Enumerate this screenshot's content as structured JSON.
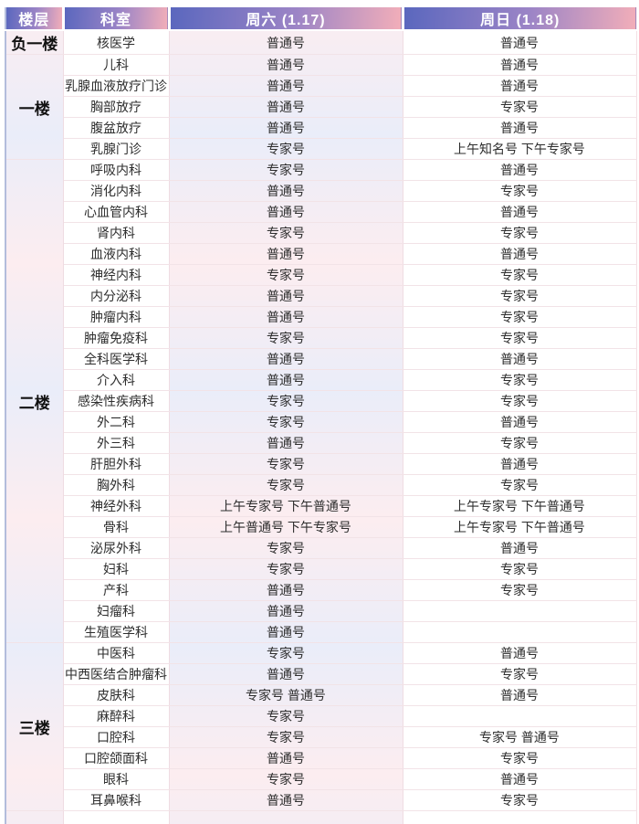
{
  "table": {
    "headers": [
      "楼层",
      "科室",
      "周六 (1.17)",
      "周日 (1.18)"
    ],
    "floors": [
      {
        "label": "负一楼",
        "departments": [
          {
            "name": "核医学",
            "sat": "普通号",
            "sun": "普通号"
          }
        ]
      },
      {
        "label": "一楼",
        "departments": [
          {
            "name": "儿科",
            "sat": "普通号",
            "sun": "普通号"
          },
          {
            "name": "乳腺血液放疗门诊",
            "sat": "普通号",
            "sun": "普通号"
          },
          {
            "name": "胸部放疗",
            "sat": "普通号",
            "sun": "专家号"
          },
          {
            "name": "腹盆放疗",
            "sat": "普通号",
            "sun": "普通号"
          },
          {
            "name": "乳腺门诊",
            "sat": "专家号",
            "sun": "上午知名号 下午专家号"
          }
        ]
      },
      {
        "label": "二楼",
        "departments": [
          {
            "name": "呼吸内科",
            "sat": "专家号",
            "sun": "普通号"
          },
          {
            "name": "消化内科",
            "sat": "普通号",
            "sun": "专家号"
          },
          {
            "name": "心血管内科",
            "sat": "普通号",
            "sun": "普通号"
          },
          {
            "name": "肾内科",
            "sat": "专家号",
            "sun": "专家号"
          },
          {
            "name": "血液内科",
            "sat": "普通号",
            "sun": "普通号"
          },
          {
            "name": "神经内科",
            "sat": "专家号",
            "sun": "专家号"
          },
          {
            "name": "内分泌科",
            "sat": "普通号",
            "sun": "专家号"
          },
          {
            "name": "肿瘤内科",
            "sat": "普通号",
            "sun": "专家号"
          },
          {
            "name": "肿瘤免疫科",
            "sat": "专家号",
            "sun": "专家号"
          },
          {
            "name": "全科医学科",
            "sat": "普通号",
            "sun": "普通号"
          },
          {
            "name": "介入科",
            "sat": "普通号",
            "sun": "专家号"
          },
          {
            "name": "感染性疾病科",
            "sat": "专家号",
            "sun": "专家号"
          },
          {
            "name": "外二科",
            "sat": "专家号",
            "sun": "普通号"
          },
          {
            "name": "外三科",
            "sat": "普通号",
            "sun": "专家号"
          },
          {
            "name": "肝胆外科",
            "sat": "专家号",
            "sun": "普通号"
          },
          {
            "name": "胸外科",
            "sat": "专家号",
            "sun": "专家号"
          },
          {
            "name": "神经外科",
            "sat": "上午专家号 下午普通号",
            "sun": "上午专家号 下午普通号"
          },
          {
            "name": "骨科",
            "sat": "上午普通号 下午专家号",
            "sun": "上午专家号 下午普通号"
          },
          {
            "name": "泌尿外科",
            "sat": "专家号",
            "sun": "普通号"
          },
          {
            "name": "妇科",
            "sat": "专家号",
            "sun": "专家号"
          },
          {
            "name": "产科",
            "sat": "普通号",
            "sun": "专家号"
          },
          {
            "name": "妇瘤科",
            "sat": "普通号",
            "sun": ""
          },
          {
            "name": "生殖医学科",
            "sat": "普通号",
            "sun": ""
          }
        ]
      },
      {
        "label": "三楼",
        "departments": [
          {
            "name": "中医科",
            "sat": "专家号",
            "sun": "普通号"
          },
          {
            "name": "中西医结合肿瘤科",
            "sat": "普通号",
            "sun": "专家号"
          },
          {
            "name": "皮肤科",
            "sat": "专家号 普通号",
            "sun": "普通号"
          },
          {
            "name": "麻醉科",
            "sat": "专家号",
            "sun": ""
          },
          {
            "name": "口腔科",
            "sat": "专家号",
            "sun": "专家号 普通号"
          },
          {
            "name": "口腔颌面科",
            "sat": "普通号",
            "sun": "专家号"
          },
          {
            "name": "眼科",
            "sat": "专家号",
            "sun": "普通号"
          },
          {
            "name": "耳鼻喉科",
            "sat": "普通号",
            "sun": "专家号"
          }
        ]
      }
    ],
    "colors": {
      "header_gradient_from": "#5a67be",
      "header_gradient_to": "#f2aeb9",
      "tint_pink": "#fcedf0",
      "tint_lavender": "#eaedf9",
      "outer_left_border": "#b3bddc",
      "row_border": "#f2e3e7"
    }
  }
}
